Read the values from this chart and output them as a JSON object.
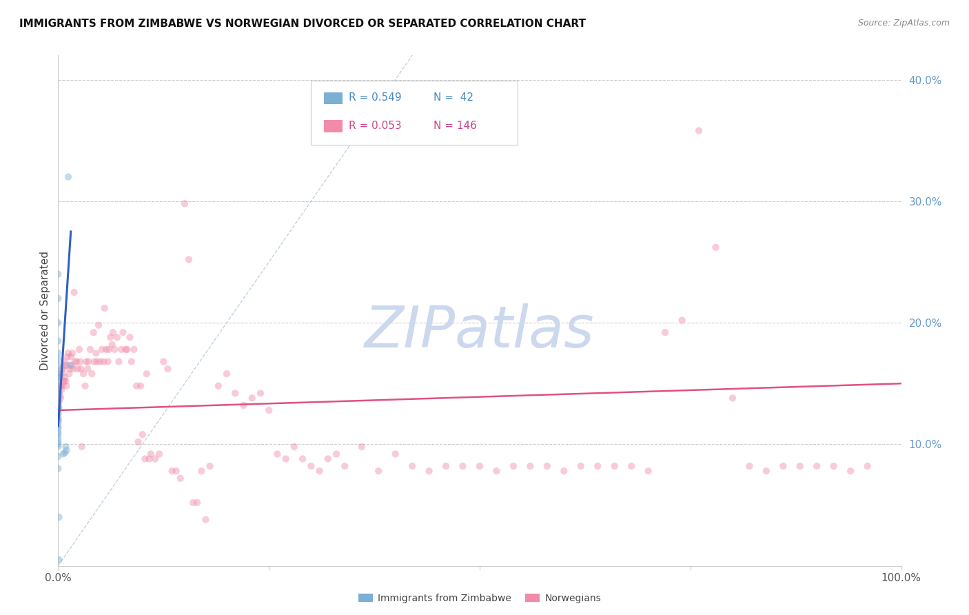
{
  "title": "IMMIGRANTS FROM ZIMBABWE VS NORWEGIAN DIVORCED OR SEPARATED CORRELATION CHART",
  "source": "Source: ZipAtlas.com",
  "ylabel": "Divorced or Separated",
  "right_ytick_labels": [
    "10.0%",
    "20.0%",
    "30.0%",
    "40.0%"
  ],
  "right_ytick_values": [
    0.1,
    0.2,
    0.3,
    0.4
  ],
  "legend_entries": [
    {
      "label": "Immigrants from Zimbabwe",
      "R": "0.549",
      "N": " 42",
      "color": "#aac4e8"
    },
    {
      "label": "Norwegians",
      "R": "0.053",
      "N": "146",
      "color": "#f4a8c0"
    }
  ],
  "blue_scatter_x": [
    0.0,
    0.0,
    0.0,
    0.0,
    0.0,
    0.0,
    0.0,
    0.0,
    0.0,
    0.0,
    0.0,
    0.0,
    0.0,
    0.0,
    0.0,
    0.0,
    0.0,
    0.0,
    0.0,
    0.0,
    0.0,
    0.0,
    0.0,
    0.0,
    0.0,
    0.0,
    0.0,
    0.0,
    0.0,
    0.0,
    0.0,
    0.0,
    0.001,
    0.001,
    0.001,
    0.001,
    0.012,
    0.014,
    0.009,
    0.01,
    0.008,
    0.006
  ],
  "blue_scatter_y": [
    0.24,
    0.22,
    0.2,
    0.185,
    0.175,
    0.17,
    0.165,
    0.16,
    0.158,
    0.155,
    0.15,
    0.148,
    0.145,
    0.142,
    0.138,
    0.135,
    0.13,
    0.128,
    0.125,
    0.122,
    0.12,
    0.118,
    0.115,
    0.113,
    0.11,
    0.108,
    0.105,
    0.102,
    0.1,
    0.098,
    0.09,
    0.08,
    0.155,
    0.13,
    0.04,
    0.005,
    0.32,
    0.165,
    0.098,
    0.095,
    0.093,
    0.092
  ],
  "pink_scatter_x": [
    0.0,
    0.0,
    0.0,
    0.0,
    0.0,
    0.0,
    0.0,
    0.001,
    0.001,
    0.001,
    0.001,
    0.002,
    0.002,
    0.002,
    0.003,
    0.003,
    0.003,
    0.004,
    0.004,
    0.005,
    0.005,
    0.006,
    0.006,
    0.007,
    0.007,
    0.008,
    0.008,
    0.009,
    0.01,
    0.01,
    0.011,
    0.012,
    0.013,
    0.014,
    0.015,
    0.016,
    0.017,
    0.018,
    0.019,
    0.02,
    0.022,
    0.023,
    0.025,
    0.026,
    0.027,
    0.028,
    0.03,
    0.032,
    0.033,
    0.035,
    0.036,
    0.038,
    0.04,
    0.042,
    0.043,
    0.045,
    0.046,
    0.048,
    0.05,
    0.052,
    0.054,
    0.055,
    0.057,
    0.059,
    0.06,
    0.062,
    0.064,
    0.065,
    0.067,
    0.07,
    0.072,
    0.075,
    0.077,
    0.08,
    0.082,
    0.085,
    0.087,
    0.09,
    0.093,
    0.095,
    0.098,
    0.1,
    0.103,
    0.105,
    0.108,
    0.11,
    0.115,
    0.12,
    0.125,
    0.13,
    0.135,
    0.14,
    0.145,
    0.15,
    0.155,
    0.16,
    0.165,
    0.17,
    0.175,
    0.18,
    0.19,
    0.2,
    0.21,
    0.22,
    0.23,
    0.24,
    0.25,
    0.26,
    0.27,
    0.28,
    0.29,
    0.3,
    0.31,
    0.32,
    0.33,
    0.34,
    0.36,
    0.38,
    0.4,
    0.42,
    0.44,
    0.46,
    0.48,
    0.5,
    0.52,
    0.54,
    0.56,
    0.58,
    0.6,
    0.62,
    0.64,
    0.66,
    0.68,
    0.7,
    0.72,
    0.74,
    0.76,
    0.78,
    0.8,
    0.82,
    0.84,
    0.86,
    0.88,
    0.9,
    0.92,
    0.94,
    0.96
  ],
  "pink_scatter_y": [
    0.15,
    0.145,
    0.138,
    0.132,
    0.128,
    0.125,
    0.12,
    0.155,
    0.148,
    0.142,
    0.135,
    0.155,
    0.148,
    0.14,
    0.158,
    0.148,
    0.138,
    0.162,
    0.145,
    0.158,
    0.148,
    0.162,
    0.152,
    0.165,
    0.152,
    0.168,
    0.155,
    0.152,
    0.165,
    0.148,
    0.172,
    0.175,
    0.158,
    0.162,
    0.172,
    0.165,
    0.175,
    0.162,
    0.225,
    0.168,
    0.168,
    0.162,
    0.178,
    0.168,
    0.162,
    0.098,
    0.158,
    0.148,
    0.168,
    0.162,
    0.168,
    0.178,
    0.158,
    0.192,
    0.168,
    0.175,
    0.168,
    0.198,
    0.168,
    0.178,
    0.168,
    0.212,
    0.178,
    0.168,
    0.178,
    0.188,
    0.182,
    0.192,
    0.178,
    0.188,
    0.168,
    0.178,
    0.192,
    0.178,
    0.178,
    0.188,
    0.168,
    0.178,
    0.148,
    0.102,
    0.148,
    0.108,
    0.088,
    0.158,
    0.088,
    0.092,
    0.088,
    0.092,
    0.168,
    0.162,
    0.078,
    0.078,
    0.072,
    0.298,
    0.252,
    0.052,
    0.052,
    0.078,
    0.038,
    0.082,
    0.148,
    0.158,
    0.142,
    0.132,
    0.138,
    0.142,
    0.128,
    0.092,
    0.088,
    0.098,
    0.088,
    0.082,
    0.078,
    0.088,
    0.092,
    0.082,
    0.098,
    0.078,
    0.092,
    0.082,
    0.078,
    0.082,
    0.082,
    0.082,
    0.078,
    0.082,
    0.082,
    0.082,
    0.078,
    0.082,
    0.082,
    0.082,
    0.082,
    0.078,
    0.192,
    0.202,
    0.358,
    0.262,
    0.138,
    0.082,
    0.078,
    0.082,
    0.082,
    0.082,
    0.082,
    0.078,
    0.082
  ],
  "blue_line_x": [
    0.0,
    0.015
  ],
  "blue_line_y": [
    0.115,
    0.275
  ],
  "pink_line_x": [
    0.0,
    1.0
  ],
  "pink_line_y": [
    0.128,
    0.15
  ],
  "ref_line_x": [
    0.0,
    1.0
  ],
  "ref_line_y": [
    0.0,
    1.0
  ],
  "xlim": [
    0.0,
    1.0
  ],
  "ylim": [
    0.0,
    0.42
  ],
  "scatter_size": 55,
  "scatter_alpha": 0.45,
  "blue_color": "#7bafd4",
  "pink_color": "#f08caa",
  "blue_line_color": "#3060c0",
  "pink_line_color": "#e05080",
  "ref_line_color": "#a8c0d8",
  "grid_color": "#cccccc",
  "title_fontsize": 11,
  "watermark_color": "#ccd8ee",
  "background_color": "#ffffff",
  "legend_R_color_blue": "#4488cc",
  "legend_R_color_pink": "#cc4488",
  "legend_N_color_blue": "#4488cc",
  "legend_N_color_pink": "#cc4488"
}
